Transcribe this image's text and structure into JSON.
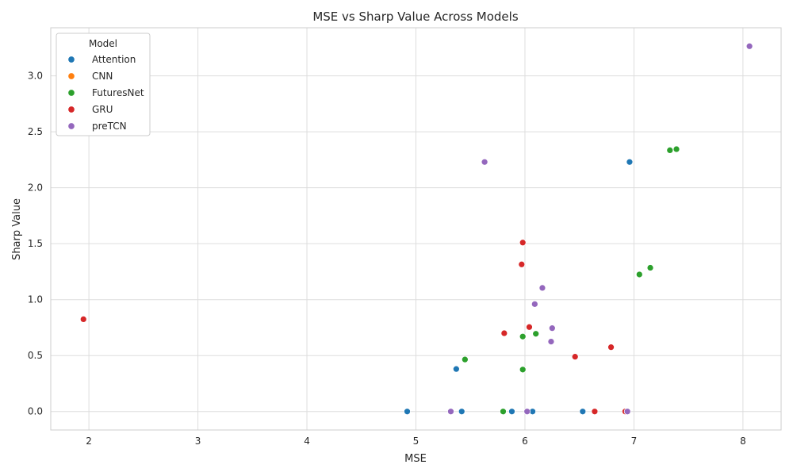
{
  "chart_data": {
    "type": "scatter",
    "title": "MSE vs Sharp Value Across Models",
    "xlabel": "MSE",
    "ylabel": "Sharp Value",
    "xlim": [
      1.65,
      8.35
    ],
    "ylim": [
      -0.165,
      3.43
    ],
    "xticks": [
      2,
      3,
      4,
      5,
      6,
      7,
      8
    ],
    "yticks": [
      0.0,
      0.5,
      1.0,
      1.5,
      2.0,
      2.5,
      3.0
    ],
    "xtick_labels": [
      "2",
      "3",
      "4",
      "5",
      "6",
      "7",
      "8"
    ],
    "ytick_labels": [
      "0.0",
      "0.5",
      "1.0",
      "1.5",
      "2.0",
      "2.5",
      "3.0"
    ],
    "grid": true,
    "legend": {
      "title": "Model",
      "placement": "top-left"
    },
    "series": [
      {
        "name": "Attention",
        "color": "#1f77b4",
        "points": [
          [
            4.92,
            0.0
          ],
          [
            5.42,
            0.0
          ],
          [
            5.88,
            0.0
          ],
          [
            6.07,
            0.0
          ],
          [
            6.53,
            0.0
          ],
          [
            5.37,
            0.38
          ],
          [
            6.96,
            2.23
          ]
        ]
      },
      {
        "name": "CNN",
        "color": "#ff7f0e",
        "points": []
      },
      {
        "name": "FuturesNet",
        "color": "#2ca02c",
        "points": [
          [
            5.8,
            0.0
          ],
          [
            5.45,
            0.465
          ],
          [
            5.98,
            0.375
          ],
          [
            5.98,
            0.67
          ],
          [
            6.1,
            0.695
          ],
          [
            7.05,
            1.225
          ],
          [
            7.15,
            1.285
          ],
          [
            7.33,
            2.335
          ],
          [
            7.39,
            2.345
          ]
        ]
      },
      {
        "name": "GRU",
        "color": "#d62728",
        "points": [
          [
            1.95,
            0.825
          ],
          [
            5.81,
            0.7
          ],
          [
            6.04,
            0.755
          ],
          [
            6.46,
            0.49
          ],
          [
            6.79,
            0.575
          ],
          [
            5.97,
            1.315
          ],
          [
            5.98,
            1.51
          ],
          [
            6.64,
            0.0
          ],
          [
            6.92,
            0.0
          ]
        ]
      },
      {
        "name": "preTCN",
        "color": "#9467bd",
        "points": [
          [
            5.32,
            0.0
          ],
          [
            6.02,
            0.0
          ],
          [
            6.94,
            0.0
          ],
          [
            5.63,
            2.23
          ],
          [
            6.09,
            0.96
          ],
          [
            6.16,
            1.105
          ],
          [
            6.24,
            0.625
          ],
          [
            6.25,
            0.745
          ],
          [
            8.06,
            3.265
          ]
        ]
      }
    ]
  }
}
